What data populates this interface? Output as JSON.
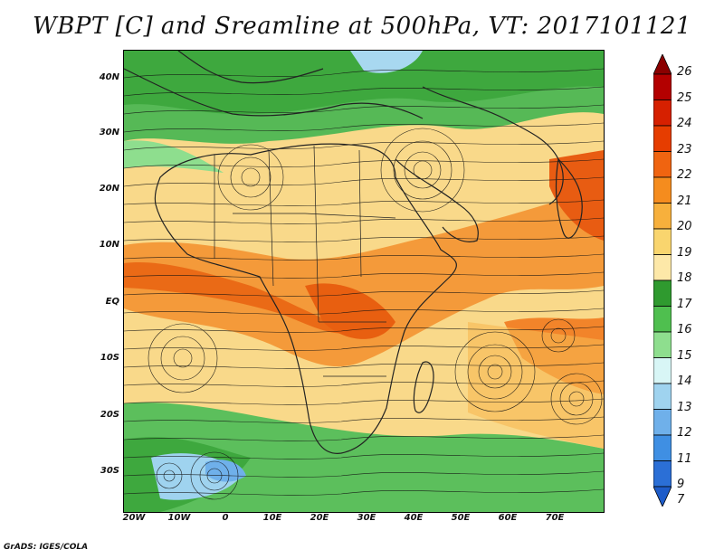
{
  "title": "WBPT [C] and Sreamline at 500hPa, VT: 2017101121",
  "lat_labels": [
    "40N",
    "30N",
    "20N",
    "10N",
    "EQ",
    "10S",
    "20S",
    "30S"
  ],
  "lon_labels": [
    "20W",
    "10W",
    "0",
    "10E",
    "20E",
    "30E",
    "40E",
    "50E",
    "60E",
    "70E"
  ],
  "colorbar": {
    "levels": [
      "26",
      "25",
      "24",
      "23",
      "22",
      "21",
      "20",
      "19",
      "18",
      "17",
      "16",
      "15",
      "14",
      "13",
      "12",
      "11",
      "9",
      "7"
    ],
    "colors": [
      "#8b0000",
      "#b30000",
      "#d62000",
      "#e63d00",
      "#f06410",
      "#f58c1e",
      "#f7b03c",
      "#f9d56e",
      "#fde8a8",
      "#2f9a2f",
      "#4fbf4f",
      "#8ede8e",
      "#d8f6f6",
      "#9fd3ef",
      "#6fb0ea",
      "#3f8fe3",
      "#2b6fd6",
      "#1e5cc9"
    ]
  },
  "credit": "GrADS: IGES/COLA"
}
